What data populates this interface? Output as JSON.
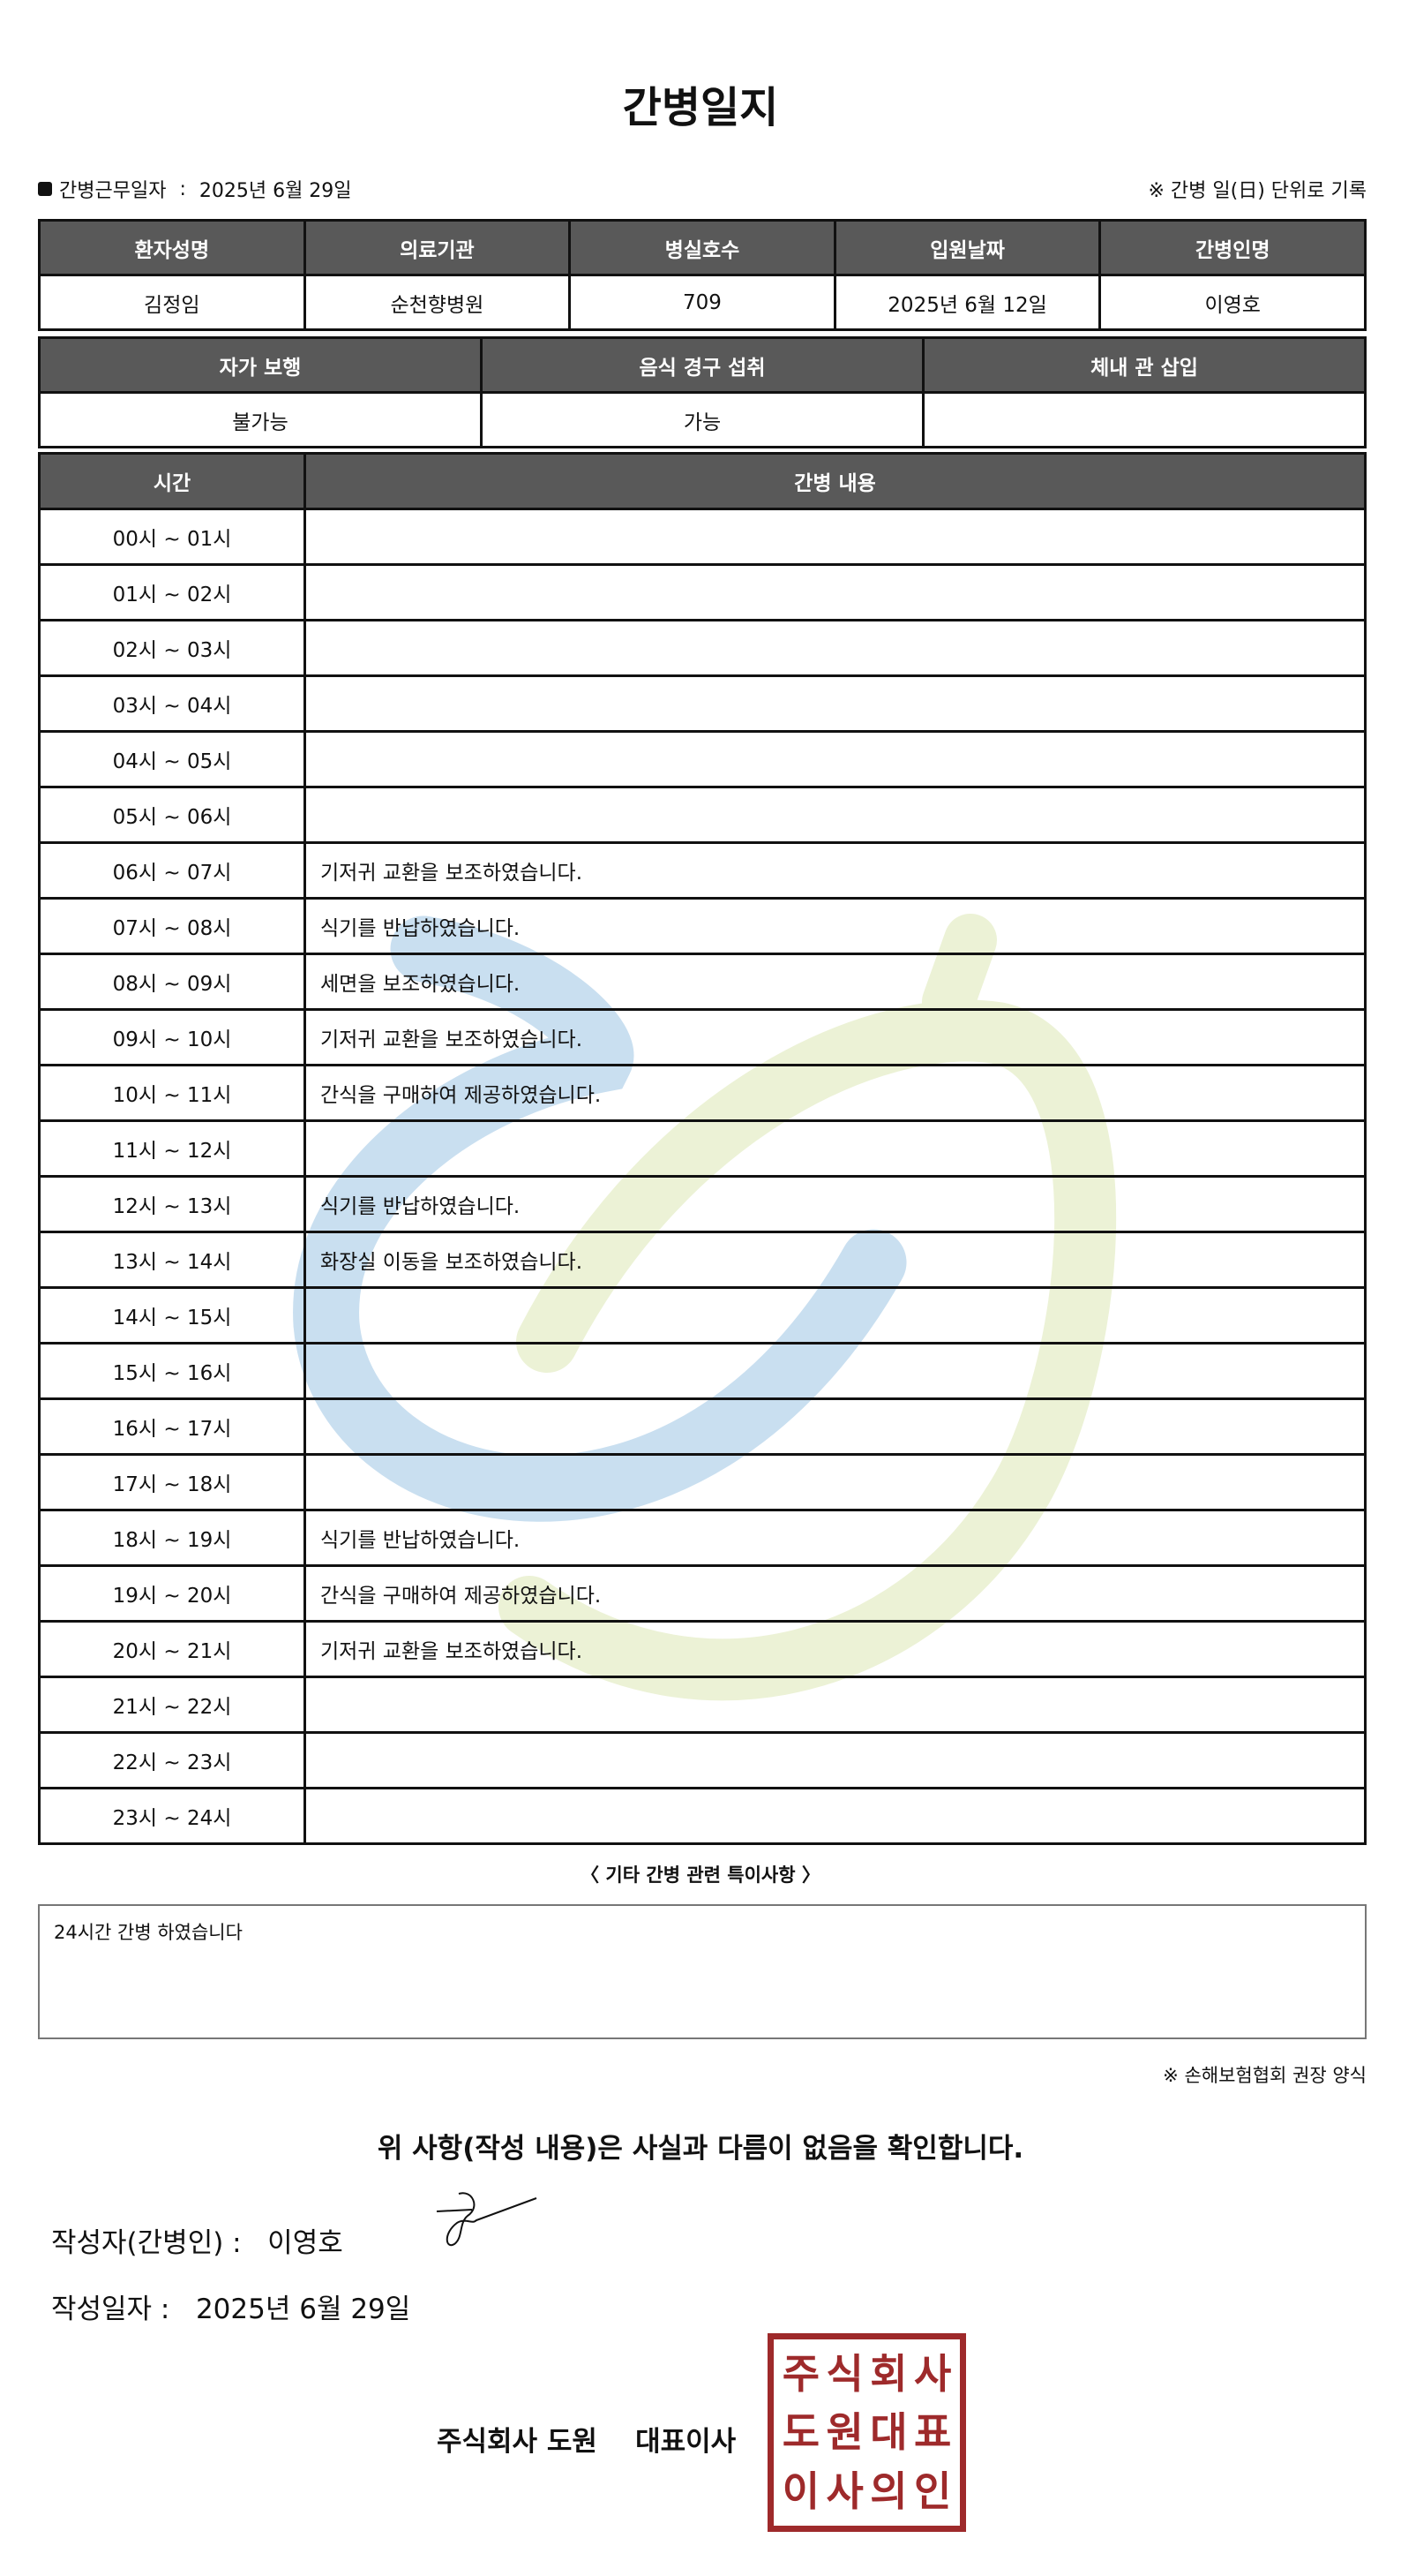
{
  "title": "간병일지",
  "work_date_label": "간병근무일자",
  "work_date": "2025년 6월 29일",
  "record_note": "※ 간병 일(日) 단위로 기록",
  "info": {
    "headers": [
      "환자성명",
      "의료기관",
      "병실호수",
      "입원날짜",
      "간병인명"
    ],
    "values": [
      "김정임",
      "순천향병원",
      "709",
      "2025년 6월 12일",
      "이영호"
    ]
  },
  "status": {
    "headers": [
      "자가 보행",
      "음식 경구 섭취",
      "체내 관 삽입"
    ],
    "values": [
      "불가능",
      "가능",
      ""
    ]
  },
  "log": {
    "headers": [
      "시간",
      "간병 내용"
    ],
    "rows": [
      {
        "time": "00시 ~ 01시",
        "content": ""
      },
      {
        "time": "01시 ~ 02시",
        "content": ""
      },
      {
        "time": "02시 ~ 03시",
        "content": ""
      },
      {
        "time": "03시 ~ 04시",
        "content": ""
      },
      {
        "time": "04시 ~ 05시",
        "content": ""
      },
      {
        "time": "05시 ~ 06시",
        "content": ""
      },
      {
        "time": "06시 ~ 07시",
        "content": "기저귀 교환을 보조하였습니다."
      },
      {
        "time": "07시 ~ 08시",
        "content": "식기를 반납하였습니다."
      },
      {
        "time": "08시 ~ 09시",
        "content": "세면을 보조하였습니다."
      },
      {
        "time": "09시 ~ 10시",
        "content": "기저귀 교환을 보조하였습니다."
      },
      {
        "time": "10시 ~ 11시",
        "content": "간식을 구매하여 제공하였습니다."
      },
      {
        "time": "11시 ~ 12시",
        "content": ""
      },
      {
        "time": "12시 ~ 13시",
        "content": "식기를 반납하였습니다."
      },
      {
        "time": "13시 ~ 14시",
        "content": "화장실 이동을 보조하였습니다."
      },
      {
        "time": "14시 ~ 15시",
        "content": ""
      },
      {
        "time": "15시 ~ 16시",
        "content": ""
      },
      {
        "time": "16시 ~ 17시",
        "content": ""
      },
      {
        "time": "17시 ~ 18시",
        "content": ""
      },
      {
        "time": "18시 ~ 19시",
        "content": "식기를 반납하였습니다."
      },
      {
        "time": "19시 ~ 20시",
        "content": "간식을 구매하여 제공하였습니다."
      },
      {
        "time": "20시 ~ 21시",
        "content": "기저귀 교환을 보조하였습니다."
      },
      {
        "time": "21시 ~ 22시",
        "content": ""
      },
      {
        "time": "22시 ~ 23시",
        "content": ""
      },
      {
        "time": "23시 ~ 24시",
        "content": ""
      }
    ]
  },
  "notes_title": "〈 기타 간병 관련 특이사항 〉",
  "notes": "24시간 간병 하였습니다",
  "footnote": "※ 손해보험협회 권장 양식",
  "confirm": "위 사항(작성 내용)은 사실과 다름이 없음을 확인합니다.",
  "writer_label": "작성자(간병인) :",
  "writer_name": "이영호",
  "write_date_label": "작성일자 :",
  "write_date": "2025년 6월 29일",
  "company": "주식회사 도원    대표이사",
  "stamp_text": [
    "주",
    "식",
    "회",
    "사",
    "도",
    "원",
    "대",
    "표",
    "이",
    "사",
    "의",
    "인"
  ],
  "colors": {
    "header_bg": "#595959",
    "stamp": "#9e2a2b",
    "watermark_blue": "#c9dff0",
    "watermark_green": "#ecf2d6"
  }
}
